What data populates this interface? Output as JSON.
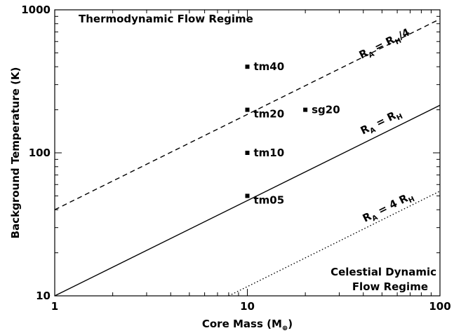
{
  "chart_data": {
    "type": "scatter",
    "xlabel": [
      "Core Mass (M",
      "⊕",
      ")"
    ],
    "ylabel": "Background Temperature (K)",
    "log_x": true,
    "log_y": true,
    "xlim": [
      1,
      100
    ],
    "ylim": [
      10,
      1000
    ],
    "xticks": [
      1,
      10,
      100
    ],
    "yticks": [
      10,
      100,
      1000
    ],
    "minor_xticks": [
      2,
      3,
      4,
      5,
      6,
      7,
      8,
      9,
      20,
      30,
      40,
      50,
      60,
      70,
      80,
      90
    ],
    "minor_yticks": [
      20,
      30,
      40,
      50,
      60,
      70,
      80,
      90,
      200,
      300,
      400,
      500,
      600,
      700,
      800,
      900
    ],
    "points": {
      "x": [
        10,
        10,
        10,
        10,
        20
      ],
      "values": [
        400,
        200,
        100,
        50,
        200
      ],
      "labels": [
        "tm40",
        "tm20",
        "tm10",
        "tm05",
        "sg20"
      ],
      "color": "#000000"
    },
    "lines": [
      {
        "x": [
          1,
          100
        ],
        "values": [
          40,
          862
        ],
        "style": "dashed",
        "color": "#000000",
        "label": [
          "R",
          "A",
          " = R",
          "H",
          "/4"
        ]
      },
      {
        "x": [
          1,
          100
        ],
        "values": [
          10,
          215
        ],
        "style": "solid",
        "color": "#000000",
        "label": [
          "R",
          "A",
          " = R",
          "H"
        ]
      },
      {
        "x": [
          8,
          100
        ],
        "values": [
          10,
          54
        ],
        "style": "dotted",
        "color": "#000000",
        "label": [
          "R",
          "A",
          " = 4 R",
          "H"
        ]
      }
    ],
    "annotations": [
      "Thermodynamic Flow Regime",
      "Celestial Dynamic",
      "Flow Regime"
    ]
  }
}
